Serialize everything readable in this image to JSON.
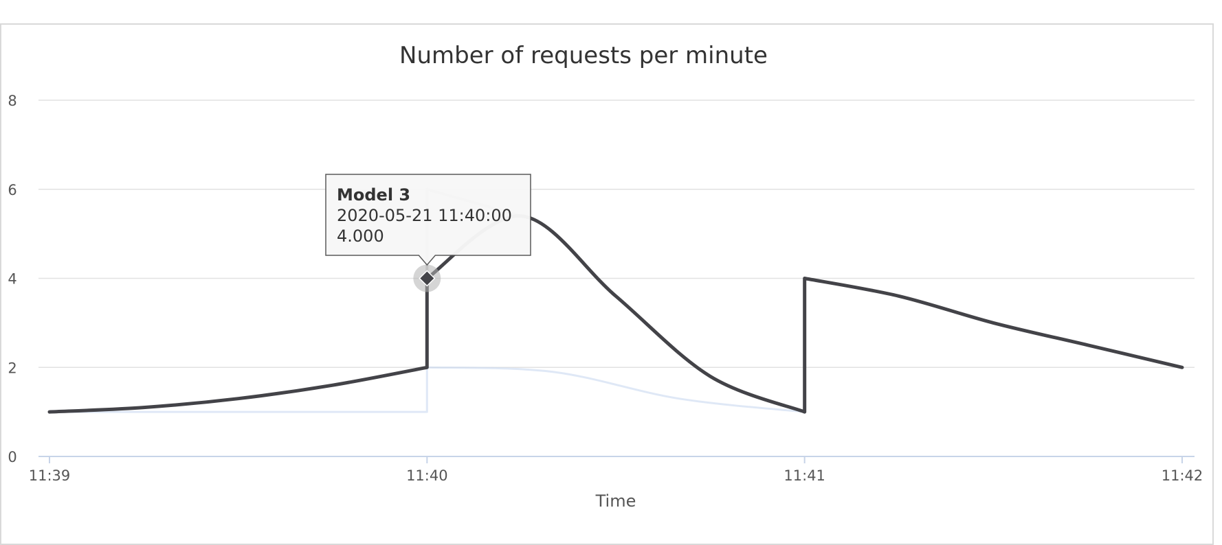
{
  "colors": {
    "background": "#ffffff",
    "grid": "#e2e2e2",
    "axis_line": "#c7d4e8",
    "tick_text": "#555555",
    "title_text": "#333333",
    "series_primary": "#434348",
    "series_secondary": "#c9d9f0",
    "series_faint": "#d6d6d6",
    "tooltip_bg": "#f7f7f7",
    "tooltip_border": "#555555"
  },
  "chart_data": {
    "type": "line",
    "title": "Number of requests per minute",
    "xlabel": "Time",
    "ylabel": "",
    "x_ticks": [
      "11:39",
      "11:40",
      "11:41",
      "11:42"
    ],
    "y_ticks": [
      "0",
      "2",
      "4",
      "6",
      "8"
    ],
    "xlim": [
      "11:39",
      "11:42"
    ],
    "ylim": [
      0,
      8
    ],
    "grid": true,
    "series": [
      {
        "name": "Model 3",
        "style": "highlighted",
        "points": [
          {
            "x": "11:39:00",
            "y": 1.0
          },
          {
            "x": "11:39:15",
            "y": 1.1
          },
          {
            "x": "11:39:30",
            "y": 1.3
          },
          {
            "x": "11:39:45",
            "y": 1.6
          },
          {
            "x": "11:40:00",
            "y": 2.0
          },
          {
            "x": "11:40:00",
            "y": 4.0
          },
          {
            "x": "11:40:00",
            "y": 6.0
          },
          {
            "x": "11:40:15",
            "y": 5.4
          },
          {
            "x": "11:40:30",
            "y": 3.6
          },
          {
            "x": "11:40:45",
            "y": 1.8
          },
          {
            "x": "11:41:00",
            "y": 1.0
          },
          {
            "x": "11:41:00",
            "y": 4.0
          },
          {
            "x": "11:41:15",
            "y": 3.6
          },
          {
            "x": "11:41:30",
            "y": 3.0
          },
          {
            "x": "11:41:45",
            "y": 2.5
          },
          {
            "x": "11:42:00",
            "y": 2.0
          }
        ]
      },
      {
        "style": "faint",
        "points": [
          {
            "x": "11:39:00",
            "y": 1.0
          },
          {
            "x": "11:40:00",
            "y": 1.0
          },
          {
            "x": "11:40:00",
            "y": 2.0
          },
          {
            "x": "11:40:20",
            "y": 1.9
          },
          {
            "x": "11:40:40",
            "y": 1.3
          },
          {
            "x": "11:41:00",
            "y": 1.0
          }
        ]
      }
    ],
    "tooltip": {
      "series": "Model 3",
      "timestamp": "2020-05-21 11:40:00",
      "value": "4.000",
      "point": {
        "x": "11:40:00",
        "y": 4.0
      }
    }
  }
}
